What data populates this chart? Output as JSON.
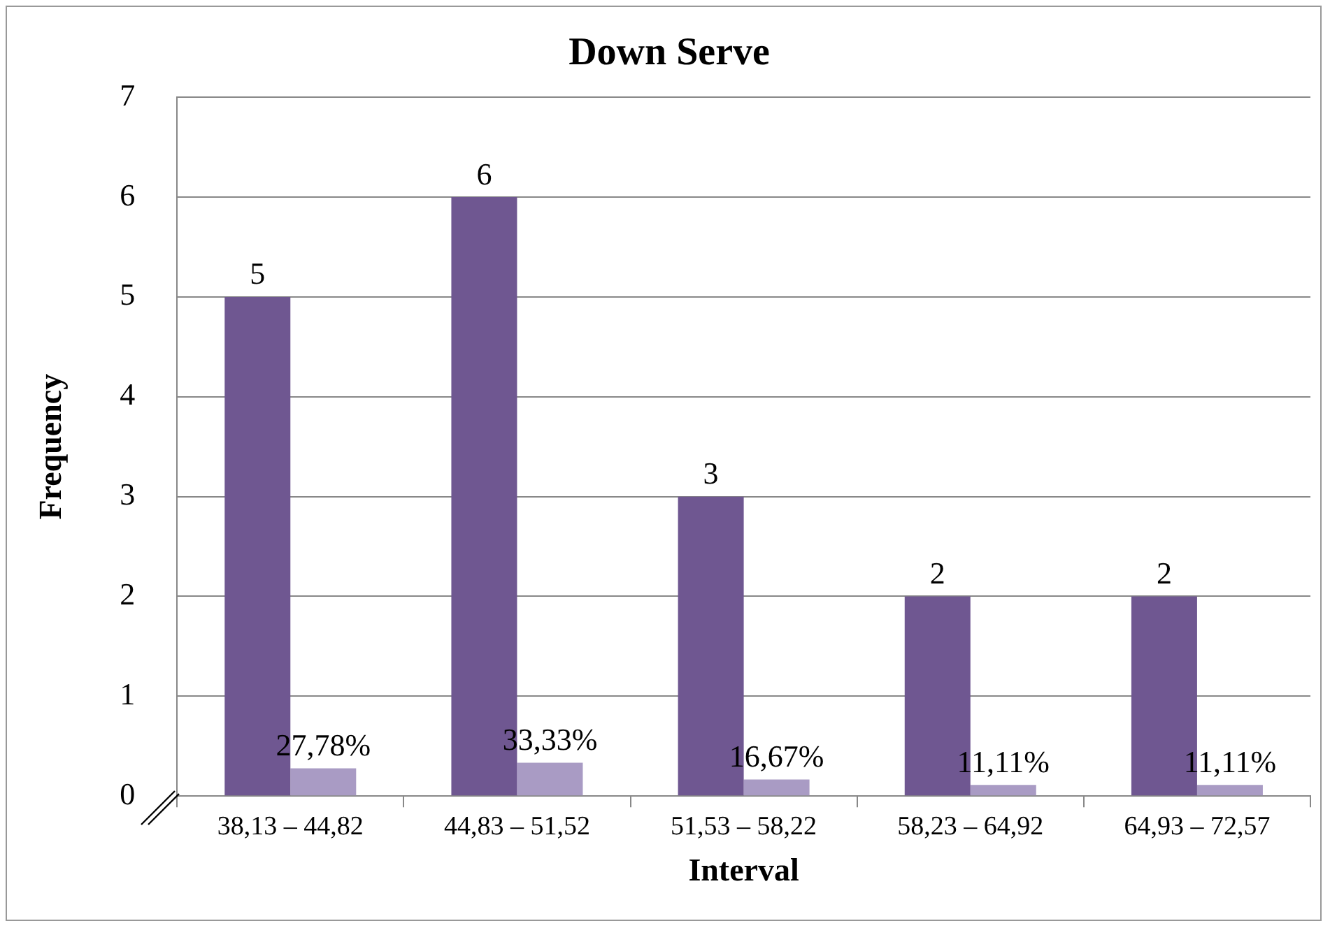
{
  "chart_data": {
    "type": "bar",
    "title": "Down Serve",
    "xlabel": "Interval",
    "ylabel": "Frequency",
    "categories": [
      "38,13 – 44,82",
      "44,83 – 51,52",
      "51,53 – 58,22",
      "58,23 – 64,92",
      "64,93 – 72,57"
    ],
    "series": [
      {
        "color": "#6f5791",
        "values": [
          5,
          6,
          3,
          2,
          2
        ],
        "value_labels": [
          "5",
          "6",
          "3",
          "2",
          "2"
        ]
      },
      {
        "color": "#a99bc4",
        "values": [
          0.2778,
          0.3333,
          0.1667,
          0.1111,
          0.1111
        ],
        "value_labels": [
          "27,78%",
          "33,33%",
          "16,67%",
          "11,11%",
          "11,11%"
        ]
      }
    ],
    "ylim": [
      0,
      7
    ],
    "yticks": [
      0,
      1,
      2,
      3,
      4,
      5,
      6,
      7
    ],
    "grid": "y",
    "legend": false
  }
}
